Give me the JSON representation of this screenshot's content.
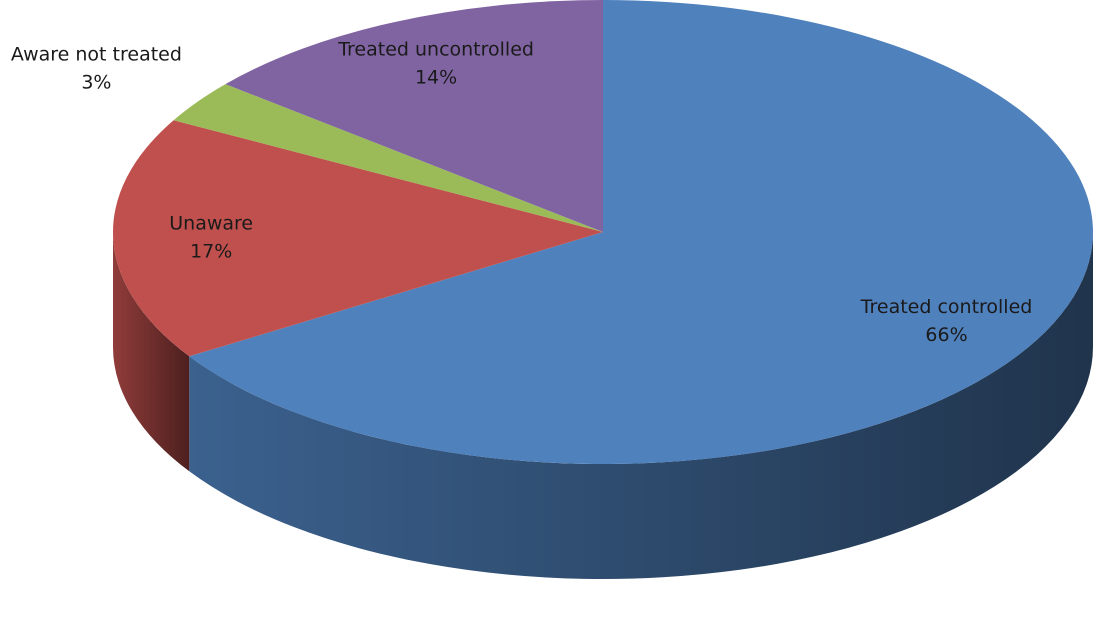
{
  "chart_data": {
    "type": "pie",
    "categories": [
      "Treated controlled",
      "Unaware",
      "Aware not treated",
      "Treated uncontrolled"
    ],
    "values": [
      66,
      17,
      3,
      14
    ],
    "value_labels": [
      "66%",
      "17%",
      "3%",
      "14%"
    ],
    "colors": [
      "#4f81bd",
      "#c0504d",
      "#9bbb59",
      "#8064a2"
    ]
  }
}
